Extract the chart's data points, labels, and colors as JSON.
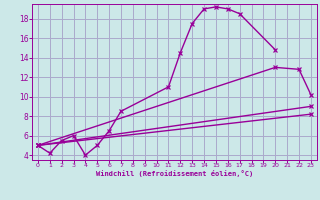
{
  "background_color": "#cce8e8",
  "grid_color": "#aaaacc",
  "line_color": "#990099",
  "xlabel": "Windchill (Refroidissement éolien,°C)",
  "xlabel_color": "#990099",
  "tick_color": "#990099",
  "ylim": [
    3.5,
    19.5
  ],
  "xlim": [
    -0.5,
    23.5
  ],
  "yticks": [
    4,
    6,
    8,
    10,
    12,
    14,
    16,
    18
  ],
  "xticks": [
    0,
    1,
    2,
    3,
    4,
    5,
    6,
    7,
    8,
    9,
    10,
    11,
    12,
    13,
    14,
    15,
    16,
    17,
    18,
    19,
    20,
    21,
    22,
    23
  ],
  "line1_x": [
    0,
    1,
    2,
    3,
    4,
    5,
    6,
    7,
    11,
    12,
    13,
    14,
    15,
    16,
    17,
    20
  ],
  "line1_y": [
    5.0,
    4.2,
    5.5,
    6.0,
    4.0,
    5.0,
    6.5,
    8.5,
    11.0,
    14.5,
    17.5,
    19.0,
    19.2,
    19.0,
    18.5,
    14.8
  ],
  "line2_x": [
    0,
    23
  ],
  "line2_y": [
    5.0,
    9.0
  ],
  "line3_x": [
    0,
    23
  ],
  "line3_y": [
    5.0,
    8.2
  ],
  "line4_x": [
    0,
    20,
    22,
    23
  ],
  "line4_y": [
    5.0,
    13.0,
    12.8,
    10.2
  ],
  "marker": "x",
  "markersize": 3,
  "linewidth": 1.0
}
